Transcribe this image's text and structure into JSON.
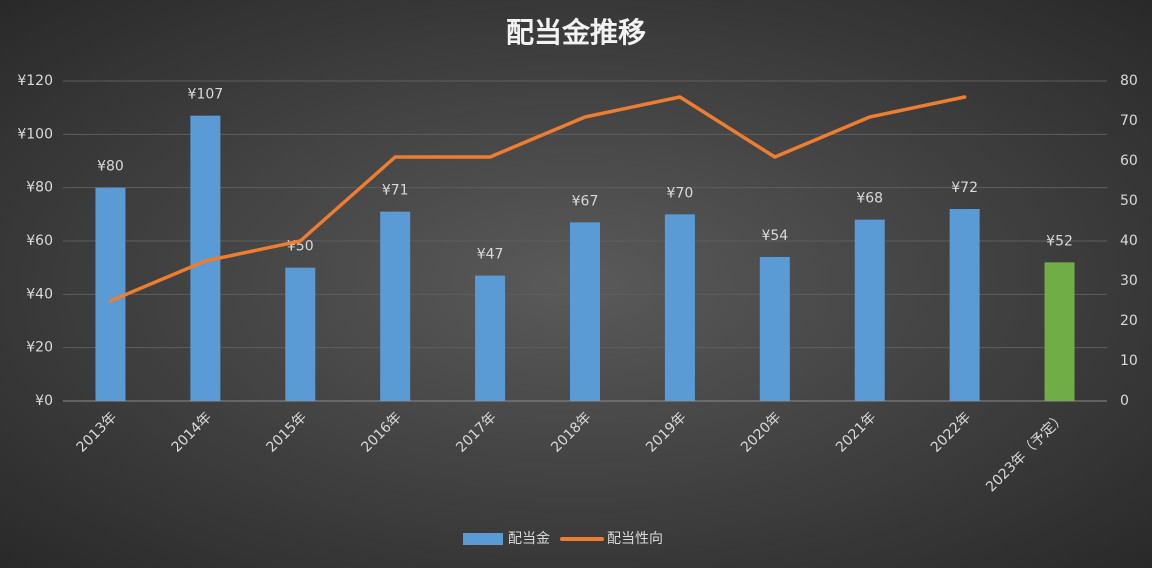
{
  "chart_data": {
    "type": "bar-line",
    "title": "配当金推移",
    "categories": [
      "2013年",
      "2014年",
      "2015年",
      "2016年",
      "2017年",
      "2018年",
      "2019年",
      "2020年",
      "2021年",
      "2022年",
      "2023年（予定）"
    ],
    "series": [
      {
        "name": "配当金",
        "type": "bar",
        "color": "#5b9bd5",
        "colors": [
          "#5b9bd5",
          "#5b9bd5",
          "#5b9bd5",
          "#5b9bd5",
          "#5b9bd5",
          "#5b9bd5",
          "#5b9bd5",
          "#5b9bd5",
          "#5b9bd5",
          "#5b9bd5",
          "#70ad47"
        ],
        "values": [
          80,
          107,
          50,
          71,
          47,
          67,
          70,
          54,
          68,
          72,
          52
        ],
        "value_labels": [
          "¥80",
          "¥107",
          "¥50",
          "¥71",
          "¥47",
          "¥67",
          "¥70",
          "¥54",
          "¥68",
          "¥72",
          "¥52"
        ]
      },
      {
        "name": "配当性向",
        "type": "line",
        "axis": "y2",
        "color": "#ed7d31",
        "values": [
          25,
          35,
          40,
          61,
          61,
          71,
          76,
          61,
          71,
          76,
          null
        ]
      }
    ],
    "ylim": [
      0,
      120
    ],
    "yticks": [
      {
        "value": 0,
        "label": "¥0"
      },
      {
        "value": 20,
        "label": "¥20"
      },
      {
        "value": 40,
        "label": "¥40"
      },
      {
        "value": 60,
        "label": "¥60"
      },
      {
        "value": 80,
        "label": "¥80"
      },
      {
        "value": 100,
        "label": "¥100"
      },
      {
        "value": 120,
        "label": "¥120"
      }
    ],
    "y2lim": [
      0,
      80
    ],
    "y2ticks": [
      0,
      10,
      20,
      30,
      40,
      50,
      60,
      70,
      80
    ],
    "grid": true,
    "legend": "bottom"
  }
}
